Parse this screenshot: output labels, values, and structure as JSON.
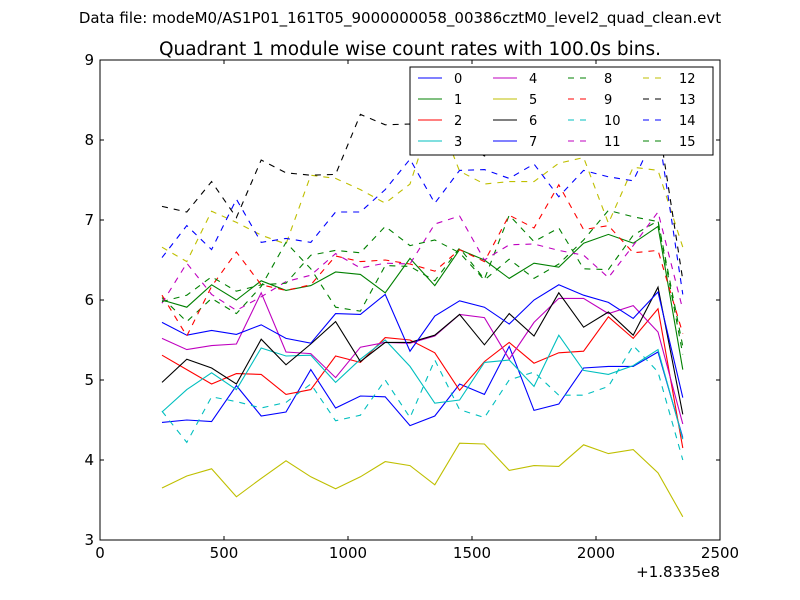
{
  "figure": {
    "suptitle": "Data file: modeM0/AS1P01_161T05_9000000058_00386cztM0_level2_quad_clean.evt"
  },
  "chart_data": {
    "type": "line",
    "title": "Quadrant 1 module wise count rates with 100.0s bins.",
    "xlabel": "",
    "ylabel": "",
    "xlim": [
      0,
      2500
    ],
    "ylim": [
      3,
      9
    ],
    "x_offset_label": "+1.8335e8",
    "x_ticks": [
      0,
      500,
      1000,
      1500,
      2000,
      2500
    ],
    "y_ticks": [
      3,
      4,
      5,
      6,
      7,
      8,
      9
    ],
    "grid": false,
    "legend_position": "top-right",
    "x": [
      250,
      350,
      450,
      550,
      650,
      750,
      850,
      950,
      1050,
      1150,
      1250,
      1350,
      1450,
      1550,
      1650,
      1750,
      1850,
      1950,
      2050,
      2150,
      2250,
      2350
    ],
    "series": [
      {
        "name": "0",
        "color": "#0000ff",
        "dash": "solid",
        "values": [
          4.47,
          4.5,
          4.48,
          4.93,
          4.55,
          4.6,
          5.13,
          4.65,
          4.8,
          4.79,
          4.43,
          4.55,
          4.95,
          4.82,
          5.42,
          4.62,
          4.7,
          5.15,
          5.17,
          5.17,
          5.35,
          4.28
        ]
      },
      {
        "name": "1",
        "color": "#008000",
        "dash": "solid",
        "values": [
          6.0,
          5.91,
          6.19,
          6.0,
          6.24,
          6.12,
          6.18,
          6.35,
          6.32,
          6.09,
          6.52,
          6.18,
          6.63,
          6.5,
          6.27,
          6.46,
          6.41,
          6.71,
          6.82,
          6.71,
          6.92,
          5.13
        ]
      },
      {
        "name": "2",
        "color": "#ff0000",
        "dash": "solid",
        "values": [
          5.31,
          5.13,
          4.95,
          5.08,
          5.07,
          4.82,
          4.88,
          5.3,
          5.22,
          5.53,
          5.5,
          5.34,
          4.87,
          5.23,
          5.47,
          5.21,
          5.34,
          5.36,
          5.79,
          5.52,
          5.89,
          4.15
        ]
      },
      {
        "name": "3",
        "color": "#00bfbf",
        "dash": "solid",
        "values": [
          4.6,
          4.88,
          5.09,
          4.88,
          5.4,
          5.3,
          5.31,
          4.97,
          5.26,
          5.5,
          5.17,
          4.71,
          4.75,
          5.22,
          5.25,
          4.92,
          5.56,
          5.12,
          5.07,
          5.18,
          5.38,
          4.26
        ]
      },
      {
        "name": "4",
        "color": "#bf00bf",
        "dash": "solid",
        "values": [
          5.52,
          5.38,
          5.43,
          5.45,
          6.09,
          5.35,
          5.33,
          5.03,
          5.41,
          5.47,
          5.46,
          5.55,
          5.82,
          5.78,
          5.26,
          5.72,
          6.02,
          6.02,
          5.83,
          5.93,
          5.6,
          4.45
        ]
      },
      {
        "name": "5",
        "color": "#bfbf00",
        "dash": "solid",
        "values": [
          3.65,
          3.8,
          3.89,
          3.54,
          3.77,
          3.99,
          3.79,
          3.64,
          3.79,
          3.98,
          3.93,
          3.69,
          4.21,
          4.2,
          3.87,
          3.93,
          3.92,
          4.19,
          4.08,
          4.13,
          3.84,
          3.29
        ]
      },
      {
        "name": "6",
        "color": "#000000",
        "dash": "solid",
        "values": [
          4.97,
          5.26,
          5.15,
          4.95,
          5.51,
          5.19,
          5.45,
          5.73,
          5.23,
          5.47,
          5.47,
          5.56,
          5.82,
          5.44,
          5.83,
          5.55,
          6.09,
          5.66,
          5.85,
          5.56,
          6.16,
          4.57
        ]
      },
      {
        "name": "7",
        "color": "#0000ff",
        "dash": "solid",
        "values": [
          5.72,
          5.56,
          5.62,
          5.57,
          5.69,
          5.52,
          5.46,
          5.83,
          5.82,
          6.07,
          5.36,
          5.8,
          5.99,
          5.91,
          5.7,
          6.0,
          6.19,
          6.06,
          5.97,
          5.77,
          6.1,
          4.78
        ]
      },
      {
        "name": "8",
        "color": "#008000",
        "dash": "dashed",
        "values": [
          6.03,
          5.73,
          6.02,
          5.83,
          6.17,
          6.72,
          6.39,
          5.91,
          5.86,
          6.43,
          6.42,
          6.24,
          6.65,
          6.26,
          7.06,
          6.73,
          6.9,
          6.39,
          6.38,
          6.81,
          6.99,
          5.42
        ]
      },
      {
        "name": "9",
        "color": "#ff0000",
        "dash": "dashed",
        "values": [
          6.06,
          5.55,
          6.17,
          6.6,
          6.19,
          6.12,
          6.19,
          6.55,
          6.48,
          6.5,
          6.45,
          6.36,
          6.63,
          6.48,
          7.06,
          6.9,
          7.44,
          6.88,
          6.93,
          6.59,
          6.62,
          5.58
        ]
      },
      {
        "name": "10",
        "color": "#00bfbf",
        "dash": "dashed",
        "values": [
          4.61,
          4.22,
          4.79,
          4.73,
          4.65,
          4.72,
          4.95,
          4.49,
          4.56,
          5.0,
          4.53,
          5.25,
          4.63,
          4.53,
          5.0,
          5.1,
          4.81,
          4.81,
          4.92,
          5.43,
          5.1,
          4.0
        ]
      },
      {
        "name": "11",
        "color": "#bf00bf",
        "dash": "dashed",
        "values": [
          5.96,
          6.46,
          6.07,
          5.87,
          6.04,
          6.23,
          6.31,
          6.58,
          6.4,
          6.46,
          6.45,
          6.95,
          7.05,
          6.5,
          6.69,
          6.7,
          6.62,
          6.56,
          6.28,
          6.68,
          7.1,
          5.88
        ]
      },
      {
        "name": "12",
        "color": "#bfbf00",
        "dash": "dashed",
        "values": [
          6.66,
          6.48,
          7.11,
          6.97,
          6.81,
          6.7,
          7.56,
          7.52,
          7.38,
          7.21,
          7.45,
          8.4,
          7.61,
          7.45,
          7.48,
          7.48,
          7.71,
          7.78,
          6.96,
          7.66,
          7.62,
          6.66
        ]
      },
      {
        "name": "13",
        "color": "#000000",
        "dash": "dashed",
        "values": [
          7.17,
          7.1,
          7.48,
          7.03,
          7.75,
          7.59,
          7.56,
          7.57,
          8.32,
          8.19,
          8.2,
          8.0,
          8.0,
          7.8,
          7.95,
          8.52,
          8.37,
          8.0,
          7.95,
          8.03,
          8.25,
          6.25
        ]
      },
      {
        "name": "14",
        "color": "#0000ff",
        "dash": "dashed",
        "values": [
          6.53,
          6.93,
          6.63,
          7.26,
          6.72,
          6.77,
          6.72,
          7.1,
          7.1,
          7.38,
          7.76,
          7.21,
          7.62,
          7.63,
          7.52,
          7.7,
          7.29,
          7.62,
          7.54,
          7.49,
          8.14,
          6.07
        ]
      },
      {
        "name": "15",
        "color": "#008000",
        "dash": "dashed",
        "values": [
          5.98,
          6.06,
          6.29,
          6.11,
          6.19,
          6.21,
          6.56,
          6.62,
          6.59,
          6.92,
          6.68,
          6.75,
          6.59,
          6.25,
          6.51,
          6.27,
          6.45,
          6.75,
          7.12,
          7.04,
          6.98,
          5.32
        ]
      }
    ]
  }
}
